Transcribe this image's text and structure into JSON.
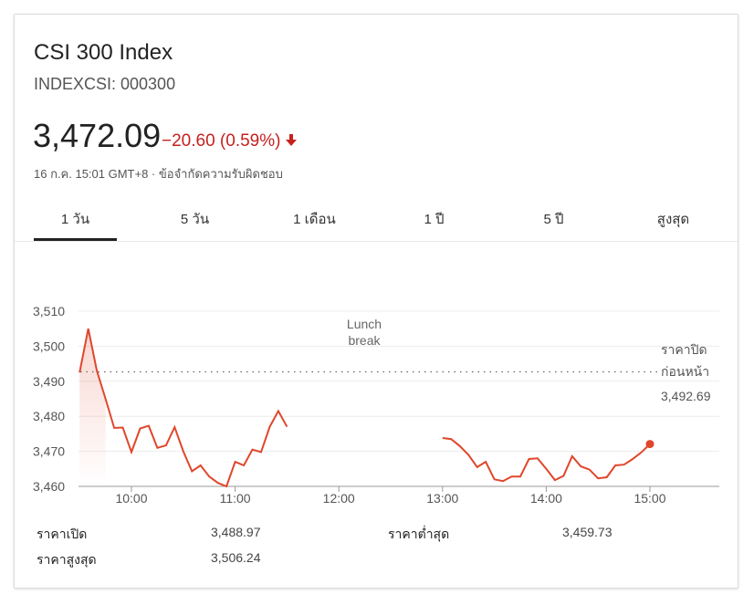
{
  "header": {
    "title": "CSI 300 Index",
    "ticker": "INDEXCSI: 000300",
    "price": "3,472.09",
    "change": "−20.60 (0.59%)",
    "meta": "16 ก.ค. 15:01 GMT+8 · ข้อจำกัดความรับผิดชอบ",
    "accent_color": "#c5221f"
  },
  "tabs": [
    {
      "label": "1 วัน",
      "selected": true
    },
    {
      "label": "5 วัน",
      "selected": false
    },
    {
      "label": "1 เดือน",
      "selected": false
    },
    {
      "label": "1 ปี",
      "selected": false
    },
    {
      "label": "5 ปี",
      "selected": false
    },
    {
      "label": "สูงสุด",
      "selected": false
    }
  ],
  "chart_data": {
    "type": "line",
    "line_color": "#e0462b",
    "xticks": [
      "10:00",
      "11:00",
      "12:00",
      "13:00",
      "14:00",
      "15:00"
    ],
    "yticks": [
      "3,460",
      "3,470",
      "3,480",
      "3,490",
      "3,500",
      "3,510"
    ],
    "ylim": [
      3460,
      3510
    ],
    "annotation_lunch": [
      "Lunch",
      "break"
    ],
    "prev_close_label": [
      "ราคาปิด",
      "ก่อนหน้า"
    ],
    "prev_close_value_text": "3,492.69",
    "prev_close": 3492.69,
    "morning_series": [
      {
        "x": "09:30",
        "y": 3492.5
      },
      {
        "x": "09:35",
        "y": 3505.0
      },
      {
        "x": "09:40",
        "y": 3493.0
      },
      {
        "x": "09:45",
        "y": 3485.0
      },
      {
        "x": "09:50",
        "y": 3476.7
      },
      {
        "x": "09:55",
        "y": 3476.8
      },
      {
        "x": "10:00",
        "y": 3469.8
      },
      {
        "x": "10:05",
        "y": 3476.5
      },
      {
        "x": "10:10",
        "y": 3477.3
      },
      {
        "x": "10:15",
        "y": 3471.0
      },
      {
        "x": "10:20",
        "y": 3471.7
      },
      {
        "x": "10:25",
        "y": 3476.9
      },
      {
        "x": "10:30",
        "y": 3470.0
      },
      {
        "x": "10:35",
        "y": 3464.3
      },
      {
        "x": "10:40",
        "y": 3466.0
      },
      {
        "x": "10:45",
        "y": 3462.8
      },
      {
        "x": "10:50",
        "y": 3461.0
      },
      {
        "x": "10:55",
        "y": 3460.0
      },
      {
        "x": "11:00",
        "y": 3467.0
      },
      {
        "x": "11:05",
        "y": 3466.0
      },
      {
        "x": "11:10",
        "y": 3470.5
      },
      {
        "x": "11:15",
        "y": 3469.8
      },
      {
        "x": "11:20",
        "y": 3477.0
      },
      {
        "x": "11:25",
        "y": 3481.5
      },
      {
        "x": "11:30",
        "y": 3477.0
      }
    ],
    "afternoon_series": [
      {
        "x": "13:00",
        "y": 3473.8
      },
      {
        "x": "13:05",
        "y": 3473.5
      },
      {
        "x": "13:10",
        "y": 3471.5
      },
      {
        "x": "13:15",
        "y": 3469.0
      },
      {
        "x": "13:20",
        "y": 3465.5
      },
      {
        "x": "13:25",
        "y": 3467.0
      },
      {
        "x": "13:30",
        "y": 3462.0
      },
      {
        "x": "13:35",
        "y": 3461.5
      },
      {
        "x": "13:40",
        "y": 3462.8
      },
      {
        "x": "13:45",
        "y": 3462.8
      },
      {
        "x": "13:50",
        "y": 3467.8
      },
      {
        "x": "13:55",
        "y": 3468.0
      },
      {
        "x": "14:00",
        "y": 3465.0
      },
      {
        "x": "14:05",
        "y": 3461.8
      },
      {
        "x": "14:10",
        "y": 3463.0
      },
      {
        "x": "14:15",
        "y": 3468.6
      },
      {
        "x": "14:20",
        "y": 3465.7
      },
      {
        "x": "14:25",
        "y": 3464.8
      },
      {
        "x": "14:30",
        "y": 3462.3
      },
      {
        "x": "14:35",
        "y": 3462.6
      },
      {
        "x": "14:40",
        "y": 3466.0
      },
      {
        "x": "14:45",
        "y": 3466.2
      },
      {
        "x": "14:50",
        "y": 3467.8
      },
      {
        "x": "14:55",
        "y": 3469.7
      },
      {
        "x": "15:00",
        "y": 3472.09
      }
    ]
  },
  "stats": {
    "open_label": "ราคาเปิด",
    "open_value": "3,488.97",
    "high_label": "ราคาสูงสุด",
    "high_value": "3,506.24",
    "low_label": "ราคาต่ำสุด",
    "low_value": "3,459.73"
  }
}
